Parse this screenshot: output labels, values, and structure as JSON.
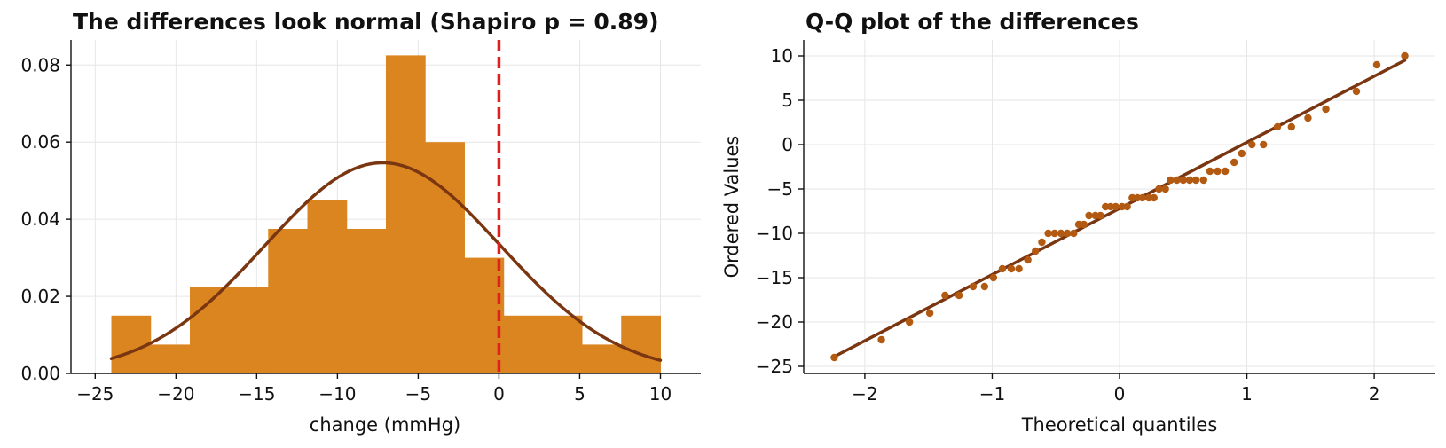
{
  "chart_data": [
    {
      "type": "bar",
      "subtype": "histogram_with_density",
      "title": "The differences look normal (Shapiro p = 0.89)",
      "xlabel": "change (mmHg)",
      "ylabel": "",
      "xlim": [
        -26.5,
        12.5
      ],
      "ylim": [
        0,
        0.0865
      ],
      "xticks": [
        -25,
        -20,
        -15,
        -10,
        -5,
        0,
        5,
        10
      ],
      "xtick_labels": [
        "−25",
        "−20",
        "−15",
        "−10",
        "−5",
        "0",
        "5",
        "10"
      ],
      "yticks": [
        0,
        0.02,
        0.04,
        0.06,
        0.08
      ],
      "ytick_labels": [
        "0.00",
        "0.02",
        "0.04",
        "0.06",
        "0.08"
      ],
      "bin_edges": [
        -24.0,
        -21.57,
        -19.14,
        -16.71,
        -14.29,
        -11.86,
        -9.43,
        -7.0,
        -4.57,
        -2.14,
        0.29,
        2.71,
        5.14,
        7.57,
        10.0
      ],
      "values": [
        0.015,
        0.0075,
        0.0225,
        0.0225,
        0.0375,
        0.045,
        0.0375,
        0.0825,
        0.06,
        0.03,
        0.015,
        0.015,
        0.0075,
        0.015
      ],
      "density_curve": {
        "mean": -7.2,
        "sd": 7.3,
        "x_range": [
          -24,
          10
        ]
      },
      "reference_line": {
        "x": 0,
        "style": "dashed"
      },
      "grid": true,
      "colors": {
        "bars": "#db8521",
        "curve": "#7a3511",
        "reference": "#e01f1f"
      }
    },
    {
      "type": "scatter",
      "subtype": "qq_plot",
      "title": "Q-Q plot of the differences",
      "xlabel": "Theoretical quantiles",
      "ylabel": "Ordered Values",
      "xlim": [
        -2.48,
        2.48
      ],
      "ylim": [
        -25.8,
        11.8
      ],
      "xticks": [
        -2,
        -1,
        0,
        1,
        2
      ],
      "xtick_labels": [
        "−2",
        "−1",
        "0",
        "1",
        "2"
      ],
      "yticks": [
        -25,
        -20,
        -15,
        -10,
        -5,
        0,
        5,
        10
      ],
      "ytick_labels": [
        "−25",
        "−20",
        "−15",
        "−10",
        "−5",
        "0",
        "5",
        "10"
      ],
      "points": [
        [
          -2.24,
          -24
        ],
        [
          -1.87,
          -22
        ],
        [
          -1.65,
          -20
        ],
        [
          -1.49,
          -19
        ],
        [
          -1.37,
          -17
        ],
        [
          -1.26,
          -17
        ],
        [
          -1.15,
          -16
        ],
        [
          -1.06,
          -16
        ],
        [
          -0.99,
          -15
        ],
        [
          -0.92,
          -14
        ],
        [
          -0.85,
          -14
        ],
        [
          -0.79,
          -14
        ],
        [
          -0.72,
          -13
        ],
        [
          -0.66,
          -12
        ],
        [
          -0.61,
          -11
        ],
        [
          -0.56,
          -10
        ],
        [
          -0.51,
          -10
        ],
        [
          -0.46,
          -10
        ],
        [
          -0.41,
          -10
        ],
        [
          -0.36,
          -10
        ],
        [
          -0.32,
          -9
        ],
        [
          -0.28,
          -9
        ],
        [
          -0.24,
          -8
        ],
        [
          -0.19,
          -8
        ],
        [
          -0.15,
          -8
        ],
        [
          -0.11,
          -7
        ],
        [
          -0.07,
          -7
        ],
        [
          -0.03,
          -7
        ],
        [
          0.02,
          -7
        ],
        [
          0.06,
          -7
        ],
        [
          0.1,
          -6
        ],
        [
          0.14,
          -6
        ],
        [
          0.18,
          -6
        ],
        [
          0.23,
          -6
        ],
        [
          0.27,
          -6
        ],
        [
          0.31,
          -5
        ],
        [
          0.36,
          -5
        ],
        [
          0.4,
          -4
        ],
        [
          0.45,
          -4
        ],
        [
          0.5,
          -4
        ],
        [
          0.55,
          -4
        ],
        [
          0.6,
          -4
        ],
        [
          0.66,
          -4
        ],
        [
          0.71,
          -3
        ],
        [
          0.77,
          -3
        ],
        [
          0.83,
          -3
        ],
        [
          0.9,
          -2
        ],
        [
          0.96,
          -1
        ],
        [
          1.04,
          0
        ],
        [
          1.13,
          0
        ],
        [
          1.24,
          2
        ],
        [
          1.35,
          2
        ],
        [
          1.48,
          3
        ],
        [
          1.62,
          4
        ],
        [
          1.86,
          6
        ],
        [
          2.02,
          9
        ],
        [
          2.24,
          10
        ]
      ],
      "fit_line": {
        "x": [
          -2.24,
          2.24
        ],
        "y": [
          -23.9,
          9.5
        ]
      },
      "grid": true,
      "colors": {
        "points": "#b35a12",
        "line": "#7a3511"
      }
    }
  ]
}
